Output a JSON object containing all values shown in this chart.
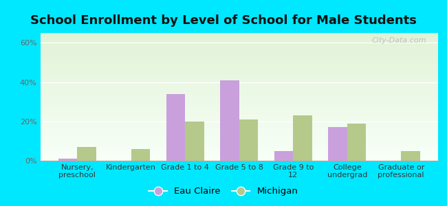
{
  "title": "School Enrollment by Level of School for Male Students",
  "categories": [
    "Nursery,\npreschool",
    "Kindergarten",
    "Grade 1 to 4",
    "Grade 5 to 8",
    "Grade 9 to\n12",
    "College\nundergrad",
    "Graduate or\nprofessional"
  ],
  "eau_claire": [
    1,
    0,
    34,
    41,
    5,
    17,
    0
  ],
  "michigan": [
    7,
    6,
    20,
    21,
    23,
    19,
    5
  ],
  "eau_claire_color": "#c9a0dc",
  "michigan_color": "#b5c98a",
  "bar_width": 0.35,
  "ylim": [
    0,
    65
  ],
  "yticks": [
    0,
    20,
    40,
    60
  ],
  "ytick_labels": [
    "0%",
    "20%",
    "40%",
    "60%"
  ],
  "background_outer": "#00e8ff",
  "title_fontsize": 13,
  "tick_fontsize": 8,
  "legend_fontsize": 9.5,
  "watermark": "City-Data.com"
}
